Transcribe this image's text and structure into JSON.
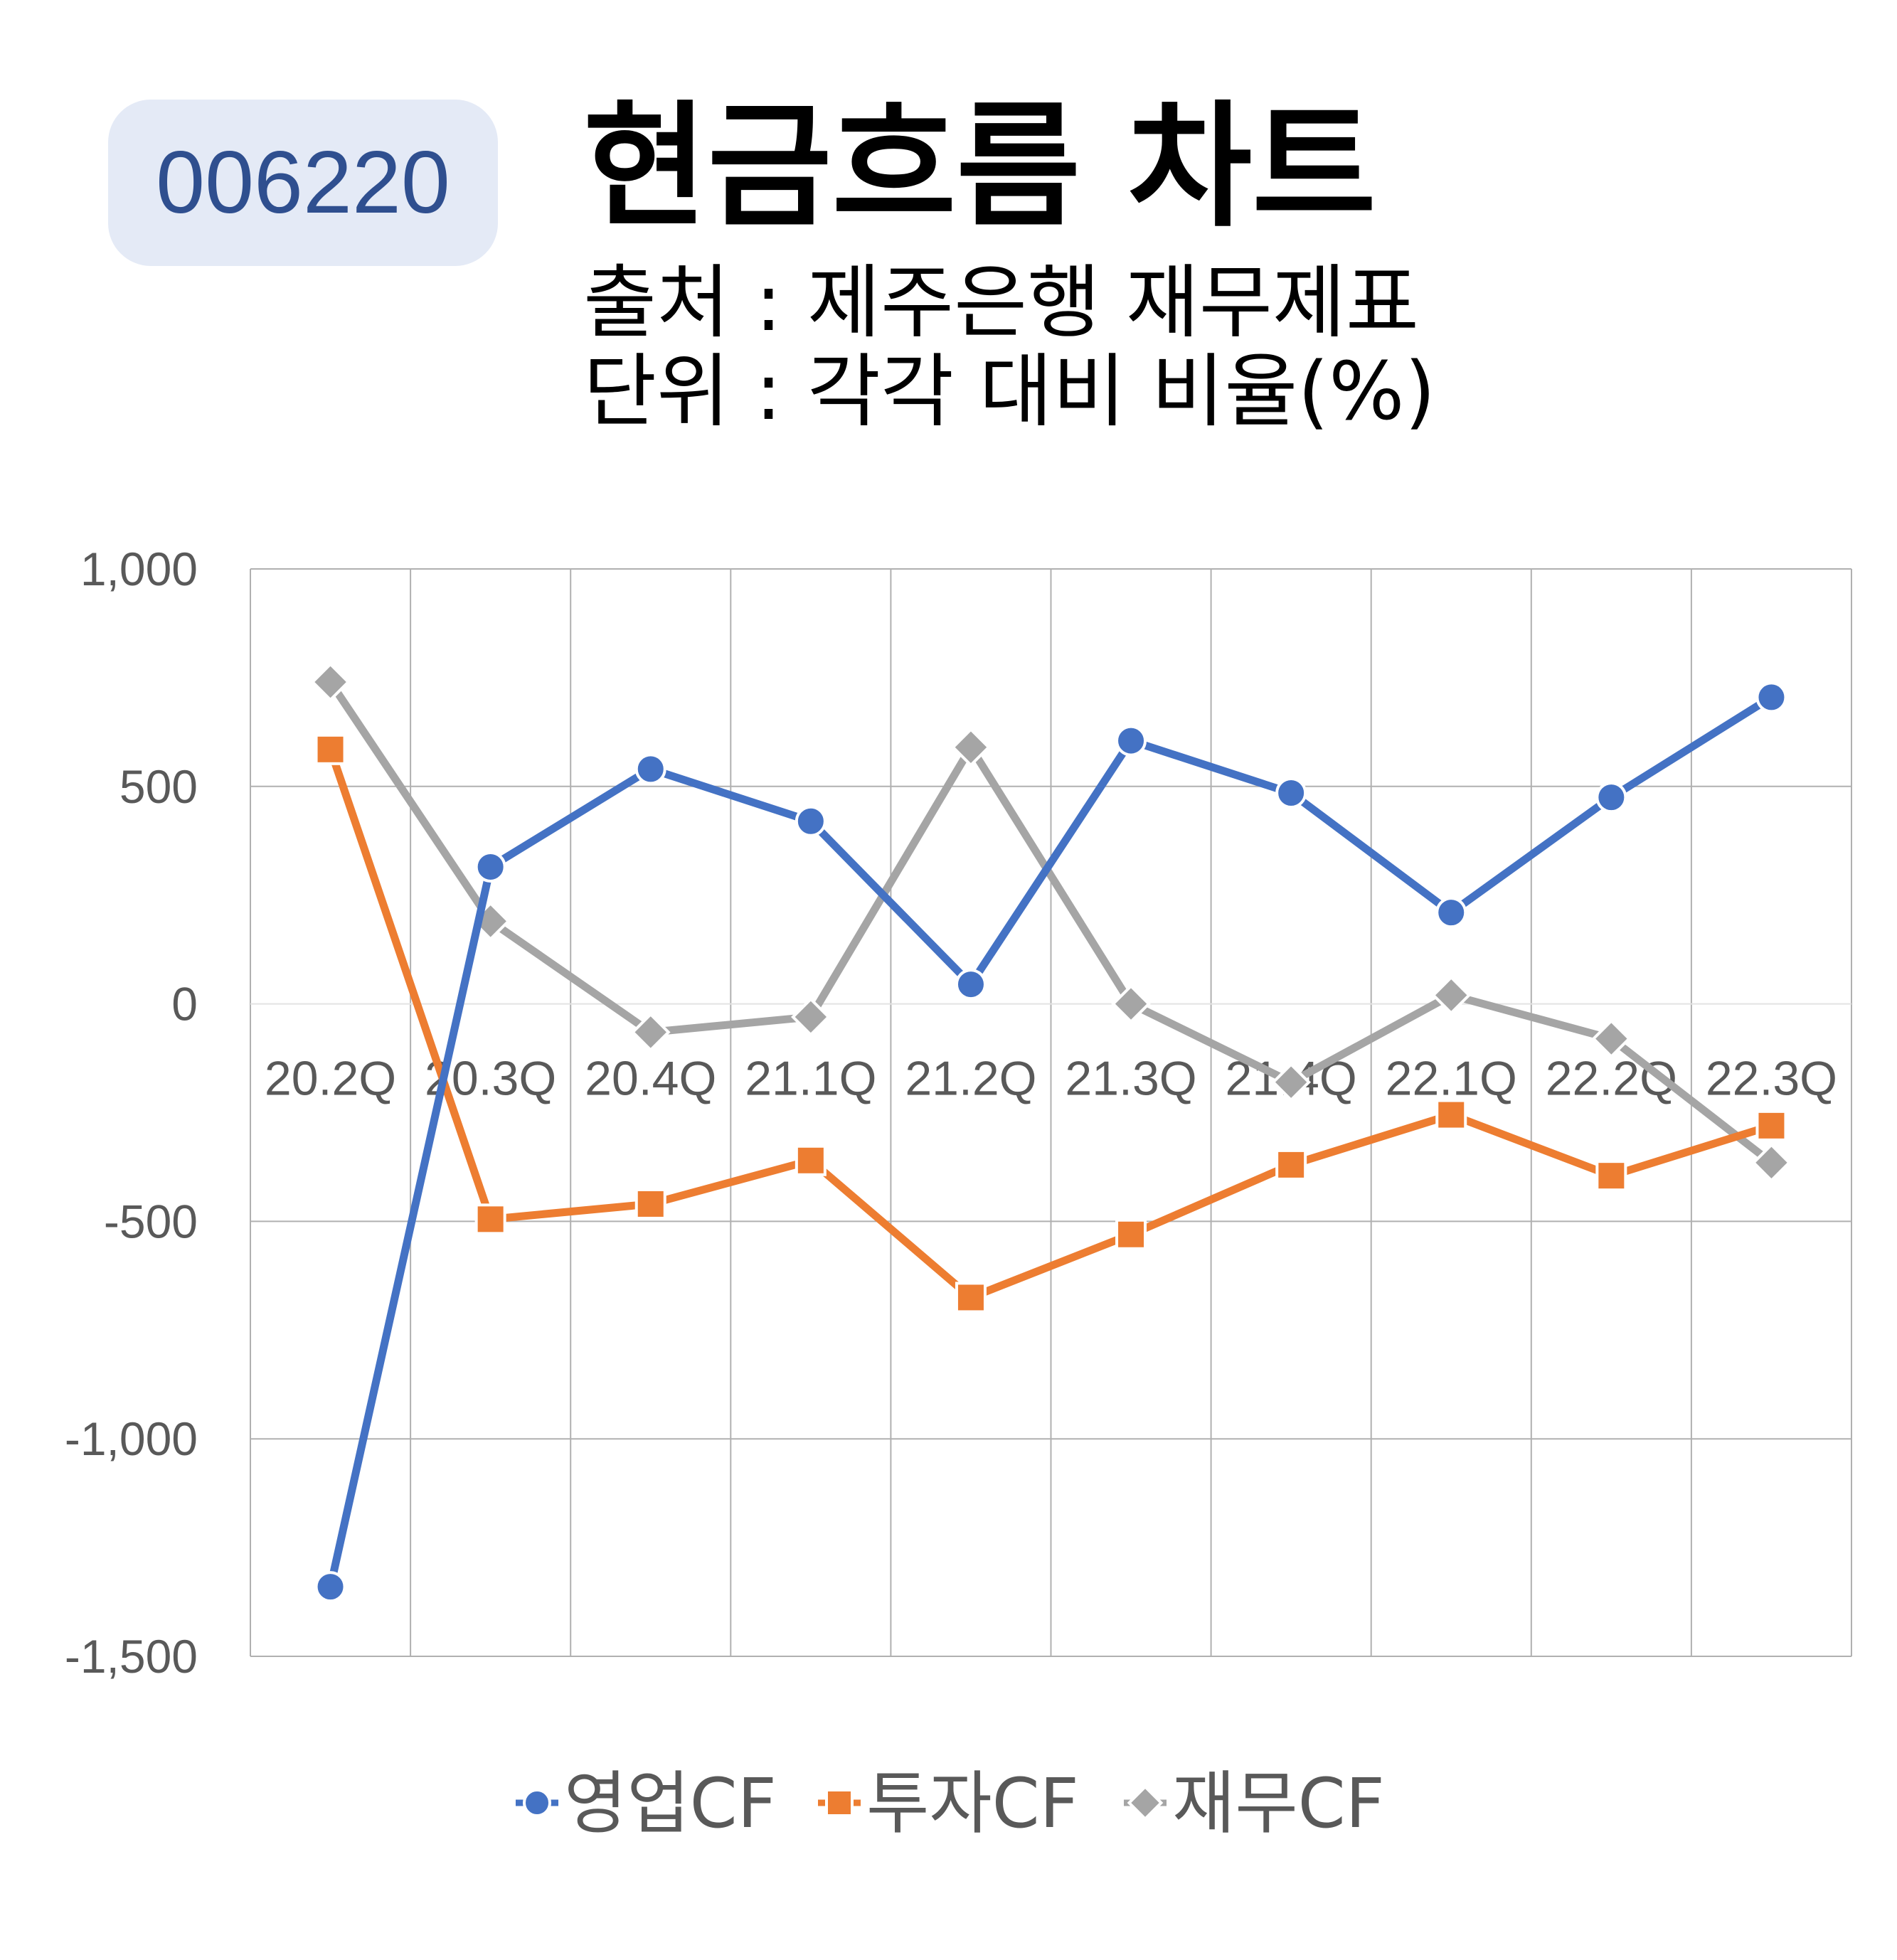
{
  "badge": {
    "code": "006220"
  },
  "header": {
    "title": "현금흐름 차트",
    "source": "출처 : 제주은행 재무제표",
    "unit": "단위 : 각각 대비 비율(%)"
  },
  "chart_data": {
    "type": "line",
    "categories": [
      "20.2Q",
      "20.3Q",
      "20.4Q",
      "21.1Q",
      "21.2Q",
      "21.3Q",
      "21.4Q",
      "22.1Q",
      "22.2Q",
      "22.3Q"
    ],
    "ylim": [
      -1500,
      1000
    ],
    "yticks": [
      1000,
      500,
      0,
      -500,
      -1000,
      -1500
    ],
    "ytick_labels": [
      "1,000",
      "500",
      "0",
      "-500",
      "-1,000",
      "-1,500"
    ],
    "grid": true,
    "legend_position": "bottom",
    "series": [
      {
        "name": "영업CF",
        "color": "#4472c4",
        "marker": "circle",
        "values": [
          -1340,
          315,
          540,
          420,
          45,
          605,
          485,
          210,
          475,
          705
        ]
      },
      {
        "name": "투자CF",
        "color": "#ed7d31",
        "marker": "square",
        "values": [
          585,
          -495,
          -460,
          -360,
          -675,
          -530,
          -370,
          -255,
          -395,
          -280
        ]
      },
      {
        "name": "재무CF",
        "color": "#a5a5a5",
        "marker": "diamond",
        "values": [
          740,
          190,
          -65,
          -30,
          590,
          0,
          -180,
          20,
          -80,
          -365
        ]
      }
    ]
  }
}
